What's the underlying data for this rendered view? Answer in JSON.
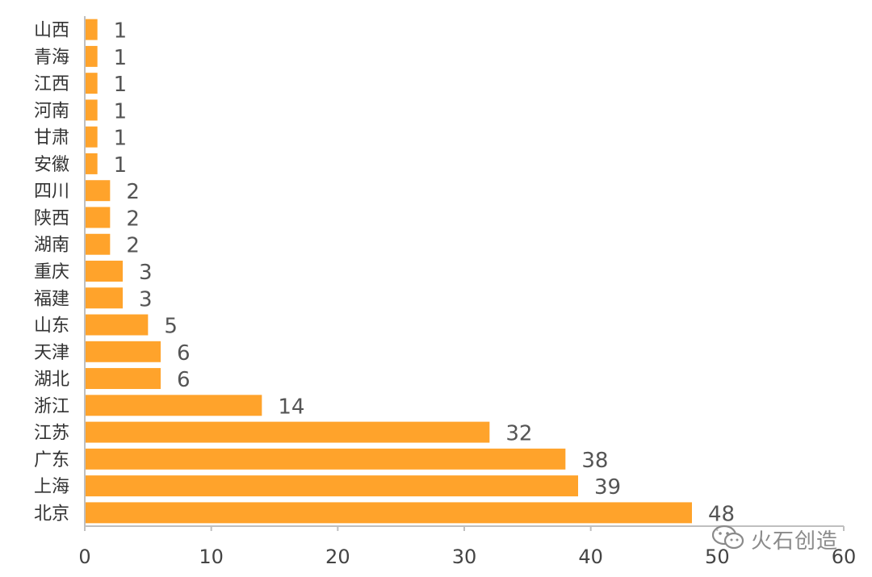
{
  "chart_data": {
    "type": "bar",
    "orientation": "horizontal",
    "categories": [
      "山西",
      "青海",
      "江西",
      "河南",
      "甘肃",
      "安徽",
      "四川",
      "陕西",
      "湖南",
      "重庆",
      "福建",
      "山东",
      "天津",
      "湖北",
      "浙江",
      "江苏",
      "广东",
      "上海",
      "北京"
    ],
    "values": [
      1,
      1,
      1,
      1,
      1,
      1,
      2,
      2,
      2,
      3,
      3,
      5,
      6,
      6,
      14,
      32,
      38,
      39,
      48
    ],
    "xlim": [
      0,
      60
    ],
    "xticks": [
      0,
      10,
      20,
      30,
      40,
      50,
      60
    ],
    "bar_color": "#FFA32B",
    "grid": false,
    "data_labels": true
  },
  "watermark": {
    "icon": "wechat-icon",
    "text": "火石创造"
  }
}
